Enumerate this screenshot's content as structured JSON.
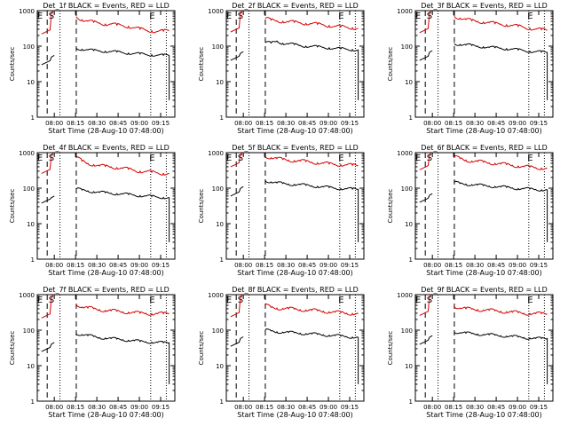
{
  "chart_data": [
    {
      "type": "line",
      "title": "Det_1f BLACK = Events, RED = LLD",
      "ylabel": "Counts/sec",
      "xlabel": "Start Time (28-Aug-10 07:48:00)",
      "x_ticks": [
        "08:00",
        "08:15",
        "08:30",
        "08:45",
        "09:00",
        "09:15"
      ],
      "y_ticks": [
        "1",
        "10",
        "100",
        "1000"
      ],
      "ylim": [
        1,
        1000
      ],
      "yscale": "log",
      "markers": {
        "E1": "E",
        "S": "S",
        "E2": "E"
      },
      "series": [
        {
          "name": "LLD",
          "color": "#d40000",
          "values": [
            220,
            1000,
            680,
            560,
            500,
            470,
            450,
            420,
            420,
            390,
            380,
            360,
            330,
            300,
            280,
            270,
            260,
            265,
            270
          ]
        },
        {
          "name": "Events",
          "color": "#000000",
          "values": [
            30,
            55,
            88,
            82,
            78,
            75,
            74,
            72,
            70,
            68,
            66,
            64,
            62,
            60,
            58,
            57,
            56,
            55,
            54
          ]
        }
      ]
    },
    {
      "type": "line",
      "title": "Det_2f BLACK = Events, RED = LLD",
      "ylabel": "Counts/sec",
      "xlabel": "Start Time (28-Aug-10 07:48:00)",
      "x_ticks": [
        "08:00",
        "08:15",
        "08:30",
        "08:45",
        "09:00",
        "09:15"
      ],
      "y_ticks": [
        "1",
        "10",
        "100",
        "1000"
      ],
      "ylim": [
        1,
        1000
      ],
      "yscale": "log",
      "markers": {
        "E1": "E",
        "S": "S",
        "E2": "E"
      },
      "series": [
        {
          "name": "LLD",
          "color": "#d40000",
          "values": [
            250,
            1000,
            600,
            540,
            520,
            500,
            480,
            470,
            460,
            440,
            430,
            410,
            400,
            380,
            360,
            350,
            340,
            330,
            320
          ]
        },
        {
          "name": "Events",
          "color": "#000000",
          "values": [
            40,
            70,
            125,
            122,
            140,
            120,
            115,
            110,
            105,
            100,
            98,
            95,
            92,
            90,
            86,
            84,
            82,
            80,
            78
          ]
        }
      ]
    },
    {
      "type": "line",
      "title": "Det_3f BLACK = Events, RED = LLD",
      "ylabel": "Counts/sec",
      "xlabel": "Start Time (28-Aug-10 07:48:00)",
      "x_ticks": [
        "08:00",
        "08:15",
        "08:30",
        "08:45",
        "09:00",
        "09:15"
      ],
      "y_ticks": [
        "1",
        "10",
        "100",
        "1000"
      ],
      "ylim": [
        1,
        1000
      ],
      "yscale": "log",
      "markers": {
        "E1": "E",
        "S": "S",
        "E2": "E"
      },
      "series": [
        {
          "name": "LLD",
          "color": "#d40000",
          "values": [
            240,
            1000,
            700,
            620,
            560,
            520,
            500,
            480,
            460,
            430,
            420,
            400,
            380,
            360,
            340,
            320,
            300,
            290,
            280
          ]
        },
        {
          "name": "Events",
          "color": "#000000",
          "values": [
            40,
            75,
            118,
            112,
            108,
            104,
            100,
            96,
            92,
            90,
            88,
            85,
            82,
            78,
            75,
            72,
            70,
            68,
            66
          ]
        }
      ]
    },
    {
      "type": "line",
      "title": "Det_4f BLACK = Events, RED = LLD",
      "ylabel": "Counts/sec",
      "xlabel": "Start Time (28-Aug-10 07:48:00)",
      "x_ticks": [
        "08:00",
        "08:15",
        "08:30",
        "08:45",
        "09:00",
        "09:15"
      ],
      "y_ticks": [
        "1",
        "10",
        "100",
        "1000"
      ],
      "ylim": [
        1,
        1000
      ],
      "yscale": "log",
      "markers": {
        "E1": "E",
        "S": "S",
        "E2": "E"
      },
      "series": [
        {
          "name": "LLD",
          "color": "#d40000",
          "values": [
            260,
            1000,
            720,
            580,
            500,
            460,
            420,
            410,
            400,
            380,
            360,
            340,
            320,
            300,
            290,
            280,
            270,
            260,
            260
          ]
        },
        {
          "name": "Events",
          "color": "#000000",
          "values": [
            38,
            60,
            95,
            88,
            84,
            80,
            76,
            74,
            72,
            70,
            68,
            66,
            64,
            62,
            60,
            58,
            56,
            55,
            54
          ]
        }
      ]
    },
    {
      "type": "line",
      "title": "Det_5f BLACK = Events, RED = LLD",
      "ylabel": "Counts/sec",
      "xlabel": "Start Time (28-Aug-10 07:48:00)",
      "x_ticks": [
        "08:00",
        "08:15",
        "08:30",
        "08:45",
        "09:00",
        "09:15"
      ],
      "y_ticks": [
        "1",
        "10",
        "100",
        "1000"
      ],
      "ylim": [
        1,
        1000
      ],
      "yscale": "log",
      "markers": {
        "E1": "E",
        "S": "S",
        "E2": "E"
      },
      "series": [
        {
          "name": "LLD",
          "color": "#d40000",
          "values": [
            400,
            1000,
            800,
            720,
            680,
            640,
            620,
            600,
            580,
            560,
            540,
            520,
            500,
            480,
            470,
            460,
            450,
            440,
            430
          ]
        },
        {
          "name": "Events",
          "color": "#000000",
          "values": [
            60,
            110,
            165,
            150,
            140,
            135,
            130,
            128,
            125,
            120,
            116,
            112,
            108,
            104,
            100,
            98,
            96,
            94,
            92
          ]
        }
      ]
    },
    {
      "type": "line",
      "title": "Det_6f BLACK = Events, RED = LLD",
      "ylabel": "Counts/sec",
      "xlabel": "Start Time (28-Aug-10 07:48:00)",
      "x_ticks": [
        "08:00",
        "08:15",
        "08:30",
        "08:45",
        "09:00",
        "09:15"
      ],
      "y_ticks": [
        "1",
        "10",
        "100",
        "1000"
      ],
      "ylim": [
        1,
        1000
      ],
      "yscale": "log",
      "markers": {
        "E1": "E",
        "S": "S",
        "E2": "E"
      },
      "series": [
        {
          "name": "LLD",
          "color": "#d40000",
          "values": [
            330,
            1000,
            750,
            680,
            620,
            580,
            560,
            540,
            520,
            500,
            480,
            460,
            440,
            420,
            400,
            390,
            380,
            370,
            360
          ]
        },
        {
          "name": "Events",
          "color": "#000000",
          "values": [
            40,
            70,
            145,
            135,
            130,
            126,
            122,
            118,
            115,
            112,
            108,
            105,
            102,
            98,
            96,
            94,
            92,
            90,
            90
          ]
        }
      ]
    },
    {
      "type": "line",
      "title": "Det_7f BLACK = Events, RED = LLD",
      "ylabel": "Counts/sec",
      "xlabel": "Start Time (28-Aug-10 07:48:00)",
      "x_ticks": [
        "08:00",
        "08:15",
        "08:30",
        "08:45",
        "09:00",
        "09:15"
      ],
      "y_ticks": [
        "1",
        "10",
        "100",
        "1000"
      ],
      "ylim": [
        1,
        1000
      ],
      "yscale": "log",
      "markers": {
        "E1": "E",
        "S": "S",
        "E2": "E"
      },
      "series": [
        {
          "name": "LLD",
          "color": "#d40000",
          "values": [
            220,
            1000,
            550,
            450,
            420,
            400,
            380,
            360,
            350,
            340,
            330,
            320,
            310,
            300,
            300,
            290,
            290,
            290,
            300
          ]
        },
        {
          "name": "Events",
          "color": "#000000",
          "values": [
            25,
            45,
            80,
            75,
            70,
            66,
            62,
            60,
            58,
            56,
            54,
            52,
            50,
            48,
            47,
            46,
            45,
            44,
            44
          ]
        }
      ]
    },
    {
      "type": "line",
      "title": "Det_8f BLACK = Events, RED = LLD",
      "ylabel": "Counts/sec",
      "xlabel": "Start Time (28-Aug-10 07:48:00)",
      "x_ticks": [
        "08:00",
        "08:15",
        "08:30",
        "08:45",
        "09:00",
        "09:15"
      ],
      "y_ticks": [
        "1",
        "10",
        "100",
        "1000"
      ],
      "ylim": [
        1,
        1000
      ],
      "yscale": "log",
      "markers": {
        "E1": "E",
        "S": "S",
        "E2": "E"
      },
      "series": [
        {
          "name": "LLD",
          "color": "#d40000",
          "values": [
            240,
            1000,
            500,
            440,
            420,
            410,
            400,
            390,
            380,
            370,
            360,
            350,
            340,
            330,
            320,
            310,
            300,
            295,
            290
          ]
        },
        {
          "name": "Events",
          "color": "#000000",
          "values": [
            35,
            65,
            100,
            95,
            90,
            88,
            86,
            84,
            82,
            80,
            78,
            76,
            74,
            72,
            70,
            68,
            66,
            64,
            62
          ]
        }
      ]
    },
    {
      "type": "line",
      "title": "Det_9f BLACK = Events, RED = LLD",
      "ylabel": "Counts/sec",
      "xlabel": "Start Time (28-Aug-10 07:48:00)",
      "x_ticks": [
        "08:00",
        "08:15",
        "08:30",
        "08:45",
        "09:00",
        "09:15"
      ],
      "y_ticks": [
        "1",
        "10",
        "100",
        "1000"
      ],
      "ylim": [
        1,
        1000
      ],
      "yscale": "log",
      "markers": {
        "E1": "E",
        "S": "S",
        "E2": "E"
      },
      "series": [
        {
          "name": "LLD",
          "color": "#d40000",
          "values": [
            260,
            1000,
            480,
            420,
            400,
            390,
            380,
            370,
            360,
            350,
            340,
            330,
            320,
            310,
            300,
            295,
            290,
            290,
            290
          ]
        },
        {
          "name": "Events",
          "color": "#000000",
          "values": [
            40,
            70,
            90,
            85,
            82,
            80,
            78,
            76,
            74,
            72,
            70,
            68,
            66,
            64,
            62,
            60,
            58,
            58,
            58
          ]
        }
      ]
    }
  ]
}
